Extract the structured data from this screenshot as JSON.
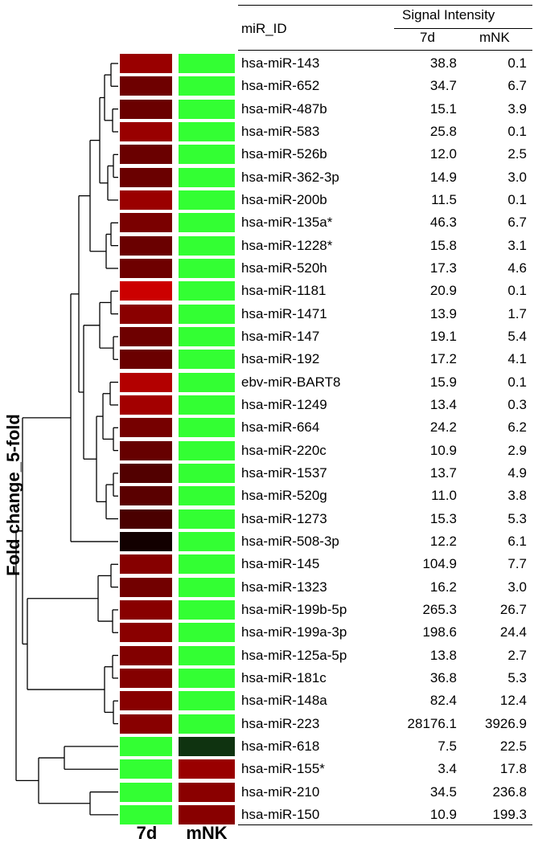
{
  "chart_data": {
    "type": "heatmap",
    "ylabel": "Fold change_5-fold",
    "columns": [
      "7d",
      "mNK"
    ],
    "table_header": {
      "id_label": "miR_ID",
      "group_label": "Signal Intensity",
      "col_7d": "7d",
      "col_mnk": "mNK"
    },
    "colors": {
      "up_red": "#8b0000",
      "bright_red": "#cc0000",
      "dark": "#120000",
      "green": "#33ff33",
      "dark_green": "#0f3310"
    },
    "rows": [
      {
        "id": "hsa-miR-143",
        "v7d": "38.8",
        "vmnk": "0.1",
        "c7d": "#990000",
        "cmnk": "#33ff33"
      },
      {
        "id": "hsa-miR-652",
        "v7d": "34.7",
        "vmnk": "6.7",
        "c7d": "#6e0000",
        "cmnk": "#33ff33"
      },
      {
        "id": "hsa-miR-487b",
        "v7d": "15.1",
        "vmnk": "3.9",
        "c7d": "#6a0000",
        "cmnk": "#33ff33"
      },
      {
        "id": "hsa-miR-583",
        "v7d": "25.8",
        "vmnk": "0.1",
        "c7d": "#990000",
        "cmnk": "#33ff33"
      },
      {
        "id": "hsa-miR-526b",
        "v7d": "12.0",
        "vmnk": "2.5",
        "c7d": "#6a0000",
        "cmnk": "#33ff33"
      },
      {
        "id": "hsa-miR-362-3p",
        "v7d": "14.9",
        "vmnk": "3.0",
        "c7d": "#6a0000",
        "cmnk": "#33ff33"
      },
      {
        "id": "hsa-miR-200b",
        "v7d": "11.5",
        "vmnk": "0.1",
        "c7d": "#9a0000",
        "cmnk": "#33ff33"
      },
      {
        "id": "hsa-miR-135a*",
        "v7d": "46.3",
        "vmnk": "6.7",
        "c7d": "#7a0000",
        "cmnk": "#33ff33"
      },
      {
        "id": "hsa-miR-1228*",
        "v7d": "15.8",
        "vmnk": "3.1",
        "c7d": "#6a0000",
        "cmnk": "#33ff33"
      },
      {
        "id": "hsa-miR-520h",
        "v7d": "17.3",
        "vmnk": "4.6",
        "c7d": "#6e0000",
        "cmnk": "#33ff33"
      },
      {
        "id": "hsa-miR-1181",
        "v7d": "20.9",
        "vmnk": "0.1",
        "c7d": "#cc0000",
        "cmnk": "#33ff33"
      },
      {
        "id": "hsa-miR-1471",
        "v7d": "13.9",
        "vmnk": "1.7",
        "c7d": "#8a0000",
        "cmnk": "#33ff33"
      },
      {
        "id": "hsa-miR-147",
        "v7d": "19.1",
        "vmnk": "5.4",
        "c7d": "#6e0000",
        "cmnk": "#33ff33"
      },
      {
        "id": "hsa-miR-192",
        "v7d": "17.2",
        "vmnk": "4.1",
        "c7d": "#6a0000",
        "cmnk": "#33ff33"
      },
      {
        "id": "ebv-miR-BART8",
        "v7d": "15.9",
        "vmnk": "0.1",
        "c7d": "#b30000",
        "cmnk": "#33ff33"
      },
      {
        "id": "hsa-miR-1249",
        "v7d": "13.4",
        "vmnk": "0.3",
        "c7d": "#a30000",
        "cmnk": "#33ff33"
      },
      {
        "id": "hsa-miR-664",
        "v7d": "24.2",
        "vmnk": "6.2",
        "c7d": "#760000",
        "cmnk": "#33ff33"
      },
      {
        "id": "hsa-miR-220c",
        "v7d": "10.9",
        "vmnk": "2.9",
        "c7d": "#660000",
        "cmnk": "#33ff33"
      },
      {
        "id": "hsa-miR-1537",
        "v7d": "13.7",
        "vmnk": "4.9",
        "c7d": "#520000",
        "cmnk": "#33ff33"
      },
      {
        "id": "hsa-miR-520g",
        "v7d": "11.0",
        "vmnk": "3.8",
        "c7d": "#5a0000",
        "cmnk": "#33ff33"
      },
      {
        "id": "hsa-miR-1273",
        "v7d": "15.3",
        "vmnk": "5.3",
        "c7d": "#4a0000",
        "cmnk": "#33ff33"
      },
      {
        "id": "hsa-miR-508-3p",
        "v7d": "12.2",
        "vmnk": "6.1",
        "c7d": "#120000",
        "cmnk": "#33ff33"
      },
      {
        "id": "hsa-miR-145",
        "v7d": "104.9",
        "vmnk": "7.7",
        "c7d": "#860000",
        "cmnk": "#33ff33"
      },
      {
        "id": "hsa-miR-1323",
        "v7d": "16.2",
        "vmnk": "3.0",
        "c7d": "#720000",
        "cmnk": "#33ff33"
      },
      {
        "id": "hsa-miR-199b-5p",
        "v7d": "265.3",
        "vmnk": "26.7",
        "c7d": "#880000",
        "cmnk": "#33ff33"
      },
      {
        "id": "hsa-miR-199a-3p",
        "v7d": "198.6",
        "vmnk": "24.4",
        "c7d": "#8a0000",
        "cmnk": "#33ff33"
      },
      {
        "id": "hsa-miR-125a-5p",
        "v7d": "13.8",
        "vmnk": "2.7",
        "c7d": "#820000",
        "cmnk": "#33ff33"
      },
      {
        "id": "hsa-miR-181c",
        "v7d": "36.8",
        "vmnk": "5.3",
        "c7d": "#840000",
        "cmnk": "#33ff33"
      },
      {
        "id": "hsa-miR-148a",
        "v7d": "82.4",
        "vmnk": "12.4",
        "c7d": "#880000",
        "cmnk": "#33ff33"
      },
      {
        "id": "hsa-miR-223",
        "v7d": "28176.1",
        "vmnk": "3926.9",
        "c7d": "#880000",
        "cmnk": "#33ff33"
      },
      {
        "id": "hsa-miR-618",
        "v7d": "7.5",
        "vmnk": "22.5",
        "c7d": "#33ff33",
        "cmnk": "#0f3310"
      },
      {
        "id": "hsa-miR-155*",
        "v7d": "3.4",
        "vmnk": "17.8",
        "c7d": "#33ff33",
        "cmnk": "#990000"
      },
      {
        "id": "hsa-miR-210",
        "v7d": "34.5",
        "vmnk": "236.8",
        "c7d": "#33ff33",
        "cmnk": "#8a0000"
      },
      {
        "id": "hsa-miR-150",
        "v7d": "10.9",
        "vmnk": "199.3",
        "c7d": "#33ff33",
        "cmnk": "#880000"
      }
    ]
  }
}
